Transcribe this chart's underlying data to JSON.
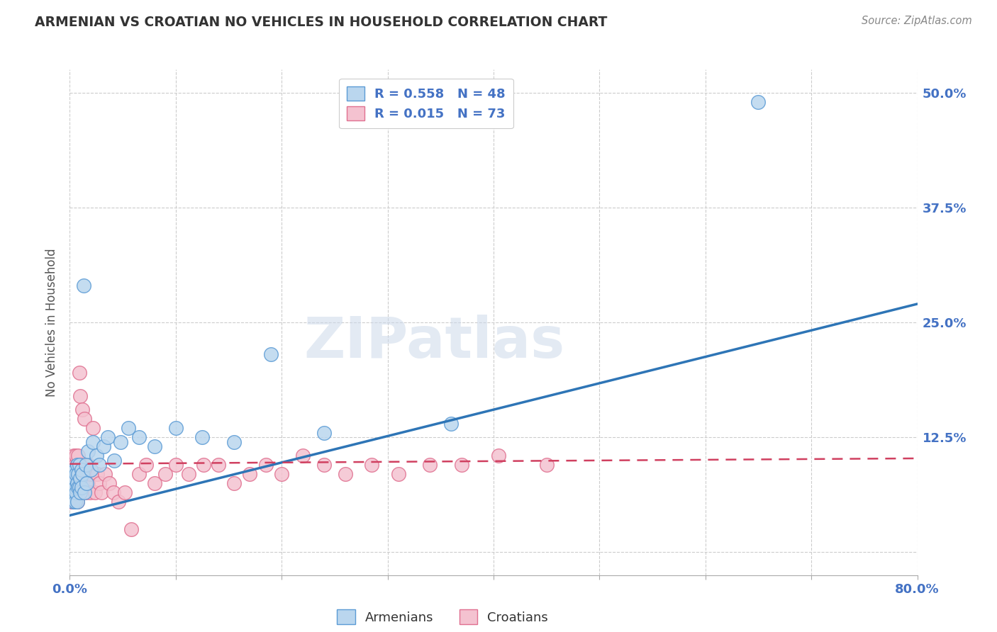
{
  "title": "ARMENIAN VS CROATIAN NO VEHICLES IN HOUSEHOLD CORRELATION CHART",
  "source": "Source: ZipAtlas.com",
  "ylabel": "No Vehicles in Household",
  "xlim": [
    0.0,
    0.8
  ],
  "ylim": [
    -0.025,
    0.525
  ],
  "armenian_color": "#bad6ee",
  "armenian_edge": "#5b9bd5",
  "croatian_color": "#f4c2d0",
  "croatian_edge": "#e07090",
  "trend_armenian_color": "#2e75b6",
  "trend_croatian_color": "#d04060",
  "watermark": "ZIPatlas",
  "legend_armenian": "R = 0.558   N = 48",
  "legend_croatian": "R = 0.015   N = 73",
  "armenian_trend_x0": 0.0,
  "armenian_trend_y0": 0.04,
  "armenian_trend_x1": 0.8,
  "armenian_trend_y1": 0.27,
  "croatian_trend_x0": 0.0,
  "croatian_trend_y0": 0.096,
  "croatian_trend_x1": 0.8,
  "croatian_trend_y1": 0.102,
  "armenian_x": [
    0.001,
    0.002,
    0.002,
    0.003,
    0.003,
    0.003,
    0.004,
    0.004,
    0.005,
    0.005,
    0.005,
    0.006,
    0.006,
    0.007,
    0.007,
    0.007,
    0.008,
    0.008,
    0.009,
    0.009,
    0.01,
    0.01,
    0.011,
    0.011,
    0.012,
    0.013,
    0.014,
    0.015,
    0.016,
    0.017,
    0.02,
    0.022,
    0.025,
    0.028,
    0.032,
    0.036,
    0.042,
    0.048,
    0.055,
    0.065,
    0.08,
    0.1,
    0.125,
    0.155,
    0.19,
    0.24,
    0.36,
    0.65
  ],
  "armenian_y": [
    0.075,
    0.085,
    0.065,
    0.09,
    0.07,
    0.055,
    0.08,
    0.065,
    0.09,
    0.07,
    0.055,
    0.085,
    0.065,
    0.075,
    0.055,
    0.095,
    0.07,
    0.085,
    0.095,
    0.07,
    0.08,
    0.065,
    0.09,
    0.07,
    0.085,
    0.29,
    0.065,
    0.095,
    0.075,
    0.11,
    0.09,
    0.12,
    0.105,
    0.095,
    0.115,
    0.125,
    0.1,
    0.12,
    0.135,
    0.125,
    0.115,
    0.135,
    0.125,
    0.12,
    0.215,
    0.13,
    0.14,
    0.49
  ],
  "croatian_x": [
    0.001,
    0.001,
    0.002,
    0.002,
    0.002,
    0.003,
    0.003,
    0.003,
    0.004,
    0.004,
    0.004,
    0.005,
    0.005,
    0.005,
    0.006,
    0.006,
    0.006,
    0.007,
    0.007,
    0.007,
    0.008,
    0.008,
    0.008,
    0.009,
    0.009,
    0.01,
    0.01,
    0.01,
    0.011,
    0.011,
    0.012,
    0.012,
    0.013,
    0.013,
    0.014,
    0.015,
    0.016,
    0.017,
    0.018,
    0.019,
    0.02,
    0.022,
    0.024,
    0.026,
    0.028,
    0.03,
    0.033,
    0.037,
    0.041,
    0.046,
    0.052,
    0.058,
    0.065,
    0.072,
    0.08,
    0.09,
    0.1,
    0.112,
    0.126,
    0.14,
    0.155,
    0.17,
    0.185,
    0.2,
    0.22,
    0.24,
    0.26,
    0.285,
    0.31,
    0.34,
    0.37,
    0.405,
    0.45
  ],
  "croatian_y": [
    0.055,
    0.075,
    0.095,
    0.065,
    0.085,
    0.075,
    0.055,
    0.095,
    0.085,
    0.065,
    0.105,
    0.075,
    0.055,
    0.095,
    0.085,
    0.065,
    0.105,
    0.075,
    0.055,
    0.095,
    0.085,
    0.065,
    0.105,
    0.075,
    0.195,
    0.17,
    0.075,
    0.095,
    0.065,
    0.085,
    0.075,
    0.155,
    0.065,
    0.085,
    0.145,
    0.065,
    0.085,
    0.075,
    0.095,
    0.065,
    0.085,
    0.135,
    0.065,
    0.085,
    0.075,
    0.065,
    0.085,
    0.075,
    0.065,
    0.055,
    0.065,
    0.025,
    0.085,
    0.095,
    0.075,
    0.085,
    0.095,
    0.085,
    0.095,
    0.095,
    0.075,
    0.085,
    0.095,
    0.085,
    0.105,
    0.095,
    0.085,
    0.095,
    0.085,
    0.095,
    0.095,
    0.105,
    0.095
  ]
}
